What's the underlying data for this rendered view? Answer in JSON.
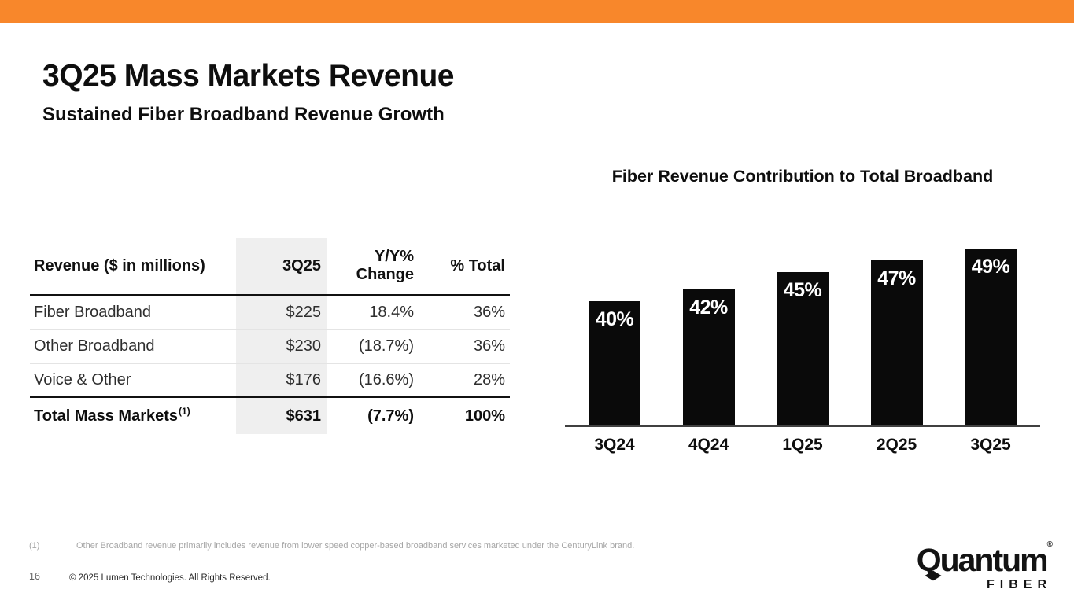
{
  "slide": {
    "title": "3Q25 Mass Markets Revenue",
    "subtitle": "Sustained Fiber Broadband Revenue Growth",
    "accent_color": "#F8872B",
    "footnote_marker": "(1)",
    "footnote_text": "Other Broadband revenue primarily includes revenue from lower speed copper-based broadband services marketed under the CenturyLink brand.",
    "page_number": "16",
    "copyright": "© 2025 Lumen Technologies. All Rights Reserved."
  },
  "table": {
    "headers": {
      "label": "Revenue ($ in millions)",
      "q": "3Q25",
      "yoy": "Y/Y%\nChange",
      "total": "% Total"
    },
    "highlight_column_color": "#EFEFEF",
    "rows": [
      {
        "label": "Fiber Broadband",
        "q": "$225",
        "yoy": "18.4%",
        "total": "36%"
      },
      {
        "label": "Other Broadband",
        "q": "$230",
        "yoy": "(18.7%)",
        "total": "36%"
      },
      {
        "label": "Voice & Other",
        "q": "$176",
        "yoy": "(16.6%)",
        "total": "28%"
      }
    ],
    "total_row": {
      "label": "Total Mass Markets",
      "sup": "(1)",
      "q": "$631",
      "yoy": "(7.7%)",
      "total": "100%"
    }
  },
  "chart_data": {
    "type": "bar",
    "title": "Fiber Revenue Contribution to Total Broadband",
    "categories": [
      "3Q24",
      "4Q24",
      "1Q25",
      "2Q25",
      "3Q25"
    ],
    "values": [
      40,
      42,
      45,
      47,
      49
    ],
    "value_labels": [
      "40%",
      "42%",
      "45%",
      "47%",
      "49%"
    ],
    "unit": "%",
    "bar_color": "#0A0A0A",
    "label_color": "#FFFFFF",
    "ylim": [
      19,
      49.5
    ],
    "grid": false,
    "legend": false,
    "xlabel": "",
    "ylabel": ""
  },
  "logo": {
    "brand": "Quantum",
    "mark": "®",
    "sub": "FIBER"
  }
}
